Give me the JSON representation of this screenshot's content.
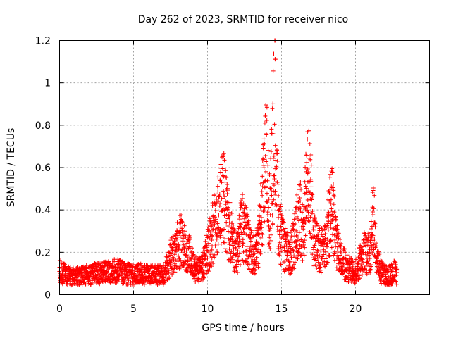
{
  "chart_data": {
    "type": "scatter",
    "title": "Day 262 of 2023, SRMTID for receiver nico",
    "xlabel": "GPS time / hours",
    "ylabel": "SRMTID / TECUs",
    "xlim": [
      0,
      25
    ],
    "ylim": [
      0,
      1.2
    ],
    "x_ticks": [
      0,
      5,
      10,
      15,
      20
    ],
    "x_tick_labels": [
      "0",
      "5",
      "10",
      "15",
      "20"
    ],
    "y_ticks": [
      0,
      0.2,
      0.4,
      0.6,
      0.8,
      1.0,
      1.2
    ],
    "y_tick_labels": [
      "0",
      "0.2",
      "0.4",
      "0.6",
      "0.8",
      "1",
      "1.2"
    ],
    "grid": true,
    "marker": "plus",
    "color": "#ff0000",
    "series": [
      {
        "name": "SRMTID",
        "envelope_hours": [
          0,
          0.5,
          1,
          1.5,
          2,
          2.5,
          3,
          3.5,
          4,
          4.5,
          5,
          5.5,
          6,
          6.5,
          7,
          7.3,
          7.6,
          7.9,
          8.2,
          8.5,
          8.8,
          9.1,
          9.4,
          9.7,
          10.0,
          10.3,
          10.6,
          10.9,
          11.1,
          11.4,
          11.7,
          12.0,
          12.3,
          12.6,
          12.9,
          13.2,
          13.5,
          13.8,
          14.0,
          14.2,
          14.4,
          14.5,
          14.6,
          14.8,
          15.0,
          15.3,
          15.6,
          15.9,
          16.2,
          16.5,
          16.7,
          16.9,
          17.2,
          17.5,
          17.8,
          18.1,
          18.4,
          18.6,
          18.9,
          19.2,
          19.5,
          19.8,
          20.1,
          20.4,
          20.7,
          21.0,
          21.2,
          21.4,
          21.7,
          22.0,
          22.3,
          22.6,
          22.8
        ],
        "envelope_tecu": [
          0.12,
          0.1,
          0.09,
          0.1,
          0.1,
          0.11,
          0.11,
          0.12,
          0.12,
          0.11,
          0.1,
          0.11,
          0.1,
          0.1,
          0.1,
          0.15,
          0.2,
          0.24,
          0.28,
          0.24,
          0.2,
          0.14,
          0.12,
          0.15,
          0.22,
          0.3,
          0.38,
          0.45,
          0.5,
          0.36,
          0.26,
          0.2,
          0.35,
          0.3,
          0.24,
          0.2,
          0.3,
          0.55,
          0.7,
          0.4,
          0.7,
          1.02,
          0.8,
          0.35,
          0.28,
          0.22,
          0.2,
          0.28,
          0.42,
          0.3,
          0.6,
          0.55,
          0.28,
          0.24,
          0.22,
          0.3,
          0.48,
          0.3,
          0.2,
          0.16,
          0.13,
          0.12,
          0.12,
          0.2,
          0.22,
          0.2,
          0.45,
          0.18,
          0.12,
          0.1,
          0.1,
          0.12,
          0.1
        ]
      }
    ]
  }
}
